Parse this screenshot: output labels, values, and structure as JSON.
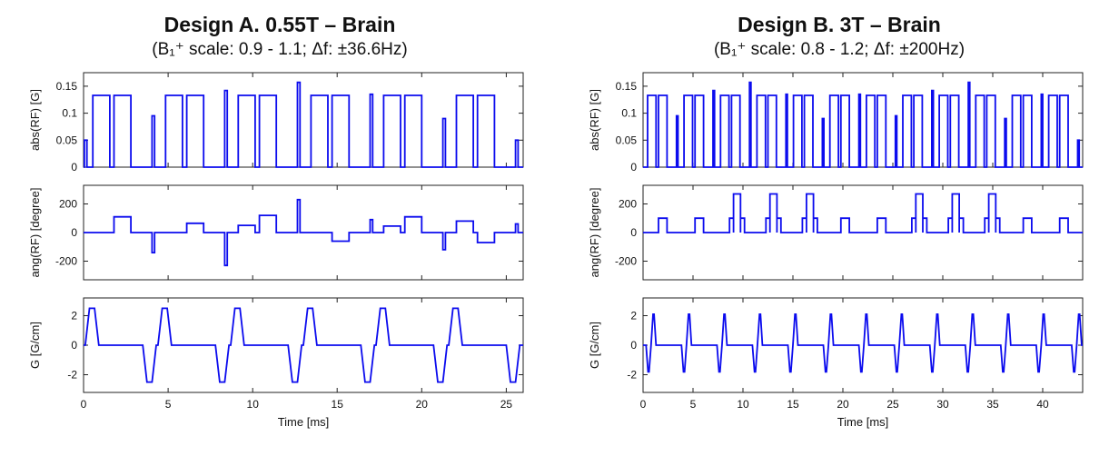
{
  "line_color": "#0b0bee",
  "axis_color": "#222222",
  "chart_data": [
    {
      "type": "line",
      "id": "design-a",
      "title": "Design A. 0.55T – Brain",
      "subtitle": "(B₁⁺ scale: 0.9 - 1.1; Δf: ±36.6Hz)",
      "xlabel": "Time [ms]",
      "xlim": [
        0,
        26
      ],
      "xticks": [
        0,
        5,
        10,
        15,
        20,
        25
      ],
      "plots": [
        {
          "kind": "pulses",
          "ylabel": "abs(RF) [G]",
          "ylim": [
            0,
            0.175
          ],
          "yticks": [
            0,
            0.05,
            0.1,
            0.15
          ],
          "ytick_labels": [
            "0",
            "0.05",
            "0.1",
            "0.15"
          ],
          "items": [
            [
              0.05,
              0.2,
              0.05
            ],
            [
              0.55,
              1.55,
              0.133
            ],
            [
              1.8,
              2.8,
              0.133
            ],
            [
              4.05,
              4.2,
              0.095
            ],
            [
              4.85,
              5.85,
              0.133
            ],
            [
              6.1,
              7.1,
              0.133
            ],
            [
              8.35,
              8.5,
              0.142
            ],
            [
              9.15,
              10.15,
              0.133
            ],
            [
              10.4,
              11.4,
              0.133
            ],
            [
              12.65,
              12.8,
              0.157
            ],
            [
              13.45,
              14.45,
              0.133
            ],
            [
              14.7,
              15.7,
              0.133
            ],
            [
              16.95,
              17.1,
              0.135
            ],
            [
              17.75,
              18.75,
              0.133
            ],
            [
              19.0,
              20.0,
              0.133
            ],
            [
              21.25,
              21.4,
              0.09
            ],
            [
              22.05,
              23.05,
              0.133
            ],
            [
              23.3,
              24.3,
              0.133
            ],
            [
              25.55,
              25.7,
              0.05
            ]
          ]
        },
        {
          "kind": "pulses",
          "ylabel": "ang(RF) [degree]",
          "ylim": [
            -330,
            330
          ],
          "yticks": [
            -200,
            0,
            200
          ],
          "ytick_labels": [
            "-200",
            "0",
            "200"
          ],
          "items": [
            [
              1.8,
              2.8,
              110
            ],
            [
              4.05,
              4.2,
              -140
            ],
            [
              6.1,
              7.1,
              65
            ],
            [
              8.35,
              8.5,
              -230
            ],
            [
              9.15,
              10.15,
              50
            ],
            [
              10.4,
              11.4,
              120
            ],
            [
              12.65,
              12.8,
              230
            ],
            [
              14.7,
              15.7,
              -60
            ],
            [
              16.95,
              17.1,
              90
            ],
            [
              17.75,
              18.75,
              45
            ],
            [
              19.0,
              20.0,
              110
            ],
            [
              21.25,
              21.4,
              -120
            ],
            [
              22.05,
              23.05,
              80
            ],
            [
              23.3,
              24.3,
              -70
            ],
            [
              25.55,
              25.7,
              60
            ]
          ]
        },
        {
          "kind": "traps",
          "ylabel": "G [G/cm]",
          "ylim": [
            -3.2,
            3.2
          ],
          "yticks": [
            -2,
            0,
            2
          ],
          "ytick_labels": [
            "-2",
            "0",
            "2"
          ],
          "items": [
            [
              0.1,
              0.35,
              0.65,
              0.9,
              2.5
            ],
            [
              3.5,
              3.75,
              4.05,
              4.3,
              -2.5
            ],
            [
              4.4,
              4.65,
              4.95,
              5.2,
              2.5
            ],
            [
              7.8,
              8.05,
              8.35,
              8.6,
              -2.5
            ],
            [
              8.7,
              8.95,
              9.25,
              9.5,
              2.5
            ],
            [
              12.1,
              12.35,
              12.65,
              12.9,
              -2.5
            ],
            [
              13.0,
              13.25,
              13.55,
              13.8,
              2.5
            ],
            [
              16.4,
              16.65,
              16.95,
              17.2,
              -2.5
            ],
            [
              17.3,
              17.55,
              17.85,
              18.1,
              2.5
            ],
            [
              20.7,
              20.95,
              21.25,
              21.5,
              -2.5
            ],
            [
              21.6,
              21.85,
              22.15,
              22.4,
              2.5
            ],
            [
              25.0,
              25.25,
              25.55,
              25.8,
              -2.5
            ]
          ]
        }
      ]
    },
    {
      "type": "line",
      "id": "design-b",
      "title": "Design B. 3T – Brain",
      "subtitle": "(B₁⁺ scale: 0.8 - 1.2; Δf: ±200Hz)",
      "xlabel": "Time [ms]",
      "xlim": [
        0,
        44
      ],
      "xticks": [
        0,
        5,
        10,
        15,
        20,
        25,
        30,
        35,
        40
      ],
      "plots": [
        {
          "kind": "pulses",
          "ylabel": "abs(RF) [G]",
          "ylim": [
            0,
            0.175
          ],
          "yticks": [
            0,
            0.05,
            0.1,
            0.15
          ],
          "ytick_labels": [
            "0",
            "0.05",
            "0.1",
            "0.15"
          ],
          "items": [
            [
              0.45,
              1.3,
              0.133
            ],
            [
              1.55,
              2.4,
              0.133
            ],
            [
              3.35,
              3.5,
              0.095
            ],
            [
              4.1,
              4.95,
              0.133
            ],
            [
              5.2,
              6.05,
              0.133
            ],
            [
              7.0,
              7.15,
              0.142
            ],
            [
              7.75,
              8.6,
              0.133
            ],
            [
              8.85,
              9.7,
              0.133
            ],
            [
              10.65,
              10.8,
              0.157
            ],
            [
              11.4,
              12.25,
              0.133
            ],
            [
              12.5,
              13.35,
              0.133
            ],
            [
              14.3,
              14.45,
              0.135
            ],
            [
              15.05,
              15.9,
              0.133
            ],
            [
              16.15,
              17.0,
              0.133
            ],
            [
              17.95,
              18.1,
              0.09
            ],
            [
              18.7,
              19.55,
              0.133
            ],
            [
              19.8,
              20.65,
              0.133
            ],
            [
              21.6,
              21.75,
              0.135
            ],
            [
              22.35,
              23.2,
              0.133
            ],
            [
              23.45,
              24.3,
              0.133
            ],
            [
              25.25,
              25.4,
              0.095
            ],
            [
              26.0,
              26.85,
              0.133
            ],
            [
              27.1,
              27.95,
              0.133
            ],
            [
              28.9,
              29.05,
              0.142
            ],
            [
              29.65,
              30.5,
              0.133
            ],
            [
              30.75,
              31.6,
              0.133
            ],
            [
              32.55,
              32.7,
              0.157
            ],
            [
              33.3,
              34.15,
              0.133
            ],
            [
              34.4,
              35.25,
              0.133
            ],
            [
              36.2,
              36.35,
              0.09
            ],
            [
              36.95,
              37.8,
              0.133
            ],
            [
              38.05,
              38.9,
              0.133
            ],
            [
              39.85,
              40.0,
              0.135
            ],
            [
              40.6,
              41.45,
              0.133
            ],
            [
              41.7,
              42.55,
              0.133
            ],
            [
              43.5,
              43.65,
              0.05
            ]
          ]
        },
        {
          "kind": "pulses",
          "ylabel": "ang(RF) [degree]",
          "ylim": [
            -330,
            330
          ],
          "yticks": [
            -200,
            0,
            200
          ],
          "ytick_labels": [
            "-200",
            "0",
            "200"
          ],
          "items": [
            [
              1.55,
              2.4,
              100
            ],
            [
              5.2,
              6.05,
              100
            ],
            [
              8.65,
              9.05,
              100
            ],
            [
              9.05,
              9.75,
              270
            ],
            [
              9.75,
              10.15,
              100
            ],
            [
              12.3,
              12.7,
              100
            ],
            [
              12.7,
              13.4,
              270
            ],
            [
              13.4,
              13.8,
              100
            ],
            [
              15.95,
              16.35,
              100
            ],
            [
              16.35,
              17.05,
              270
            ],
            [
              17.05,
              17.45,
              100
            ],
            [
              19.8,
              20.65,
              100
            ],
            [
              23.45,
              24.3,
              100
            ],
            [
              26.9,
              27.3,
              100
            ],
            [
              27.3,
              28.0,
              270
            ],
            [
              28.0,
              28.4,
              100
            ],
            [
              30.55,
              30.95,
              100
            ],
            [
              30.95,
              31.65,
              270
            ],
            [
              31.65,
              32.05,
              100
            ],
            [
              34.2,
              34.6,
              100
            ],
            [
              34.6,
              35.3,
              270
            ],
            [
              35.3,
              35.7,
              100
            ],
            [
              38.05,
              38.9,
              100
            ],
            [
              41.7,
              42.55,
              100
            ]
          ]
        },
        {
          "kind": "traps",
          "ylabel": "G [G/cm]",
          "ylim": [
            -3.2,
            3.2
          ],
          "yticks": [
            -2,
            0,
            2
          ],
          "ytick_labels": [
            "-2",
            "0",
            "2"
          ],
          "items": [
            [
              0.3,
              0.5,
              0.6,
              0.8,
              -1.8
            ],
            [
              0.8,
              1.0,
              1.1,
              1.3,
              2.1
            ],
            [
              3.85,
              4.05,
              4.15,
              4.35,
              -1.8
            ],
            [
              4.35,
              4.55,
              4.65,
              4.85,
              2.1
            ],
            [
              7.4,
              7.6,
              7.7,
              7.9,
              -1.8
            ],
            [
              7.9,
              8.1,
              8.2,
              8.4,
              2.1
            ],
            [
              10.95,
              11.15,
              11.25,
              11.45,
              -1.8
            ],
            [
              11.45,
              11.65,
              11.75,
              11.95,
              2.1
            ],
            [
              14.5,
              14.7,
              14.8,
              15.0,
              -1.8
            ],
            [
              15.0,
              15.2,
              15.3,
              15.5,
              2.1
            ],
            [
              18.05,
              18.25,
              18.35,
              18.55,
              -1.8
            ],
            [
              18.55,
              18.75,
              18.85,
              19.05,
              2.1
            ],
            [
              21.6,
              21.8,
              21.9,
              22.1,
              -1.8
            ],
            [
              22.1,
              22.3,
              22.4,
              22.6,
              2.1
            ],
            [
              25.15,
              25.35,
              25.45,
              25.65,
              -1.8
            ],
            [
              25.65,
              25.85,
              25.95,
              26.15,
              2.1
            ],
            [
              28.7,
              28.9,
              29.0,
              29.2,
              -1.8
            ],
            [
              29.2,
              29.4,
              29.5,
              29.7,
              2.1
            ],
            [
              32.25,
              32.45,
              32.55,
              32.75,
              -1.8
            ],
            [
              32.75,
              32.95,
              33.05,
              33.25,
              2.1
            ],
            [
              35.8,
              36.0,
              36.1,
              36.3,
              -1.8
            ],
            [
              36.3,
              36.5,
              36.6,
              36.8,
              2.1
            ],
            [
              39.35,
              39.55,
              39.65,
              39.85,
              -1.8
            ],
            [
              39.85,
              40.05,
              40.15,
              40.35,
              2.1
            ],
            [
              42.9,
              43.1,
              43.2,
              43.4,
              -1.8
            ],
            [
              43.4,
              43.6,
              43.7,
              43.9,
              2.1
            ]
          ]
        }
      ]
    }
  ]
}
